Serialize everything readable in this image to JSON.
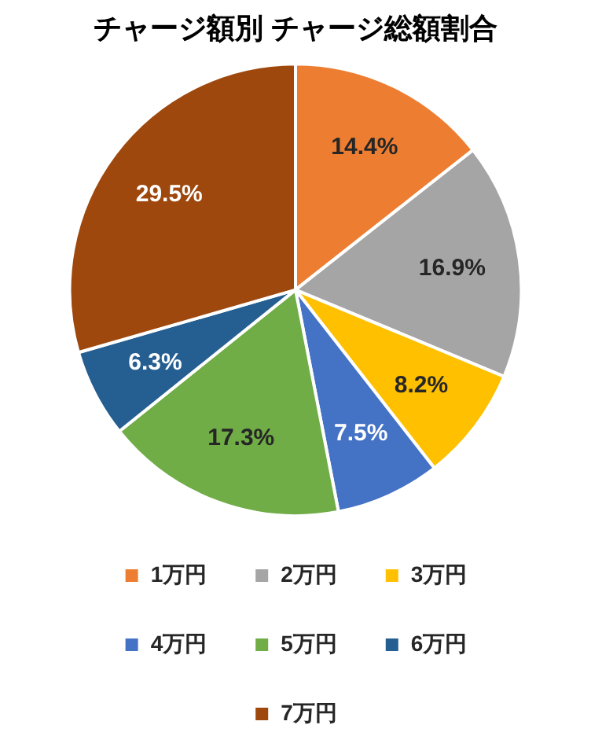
{
  "chart_data": {
    "type": "pie",
    "title": "チャージ額別 チャージ総額割合",
    "categories": [
      "1万円",
      "2万円",
      "3万円",
      "4万円",
      "5万円",
      "6万円",
      "7万円"
    ],
    "values": [
      14.4,
      16.9,
      8.2,
      7.5,
      17.3,
      6.3,
      29.5
    ],
    "value_labels": [
      "14.4%",
      "16.9%",
      "8.2%",
      "7.5%",
      "17.3%",
      "6.3%",
      "29.5%"
    ],
    "colors": [
      "#ed7d31",
      "#a5a5a5",
      "#ffc000",
      "#4472c4",
      "#70ad47",
      "#255e91",
      "#9e480e"
    ],
    "legend": "bottom"
  }
}
